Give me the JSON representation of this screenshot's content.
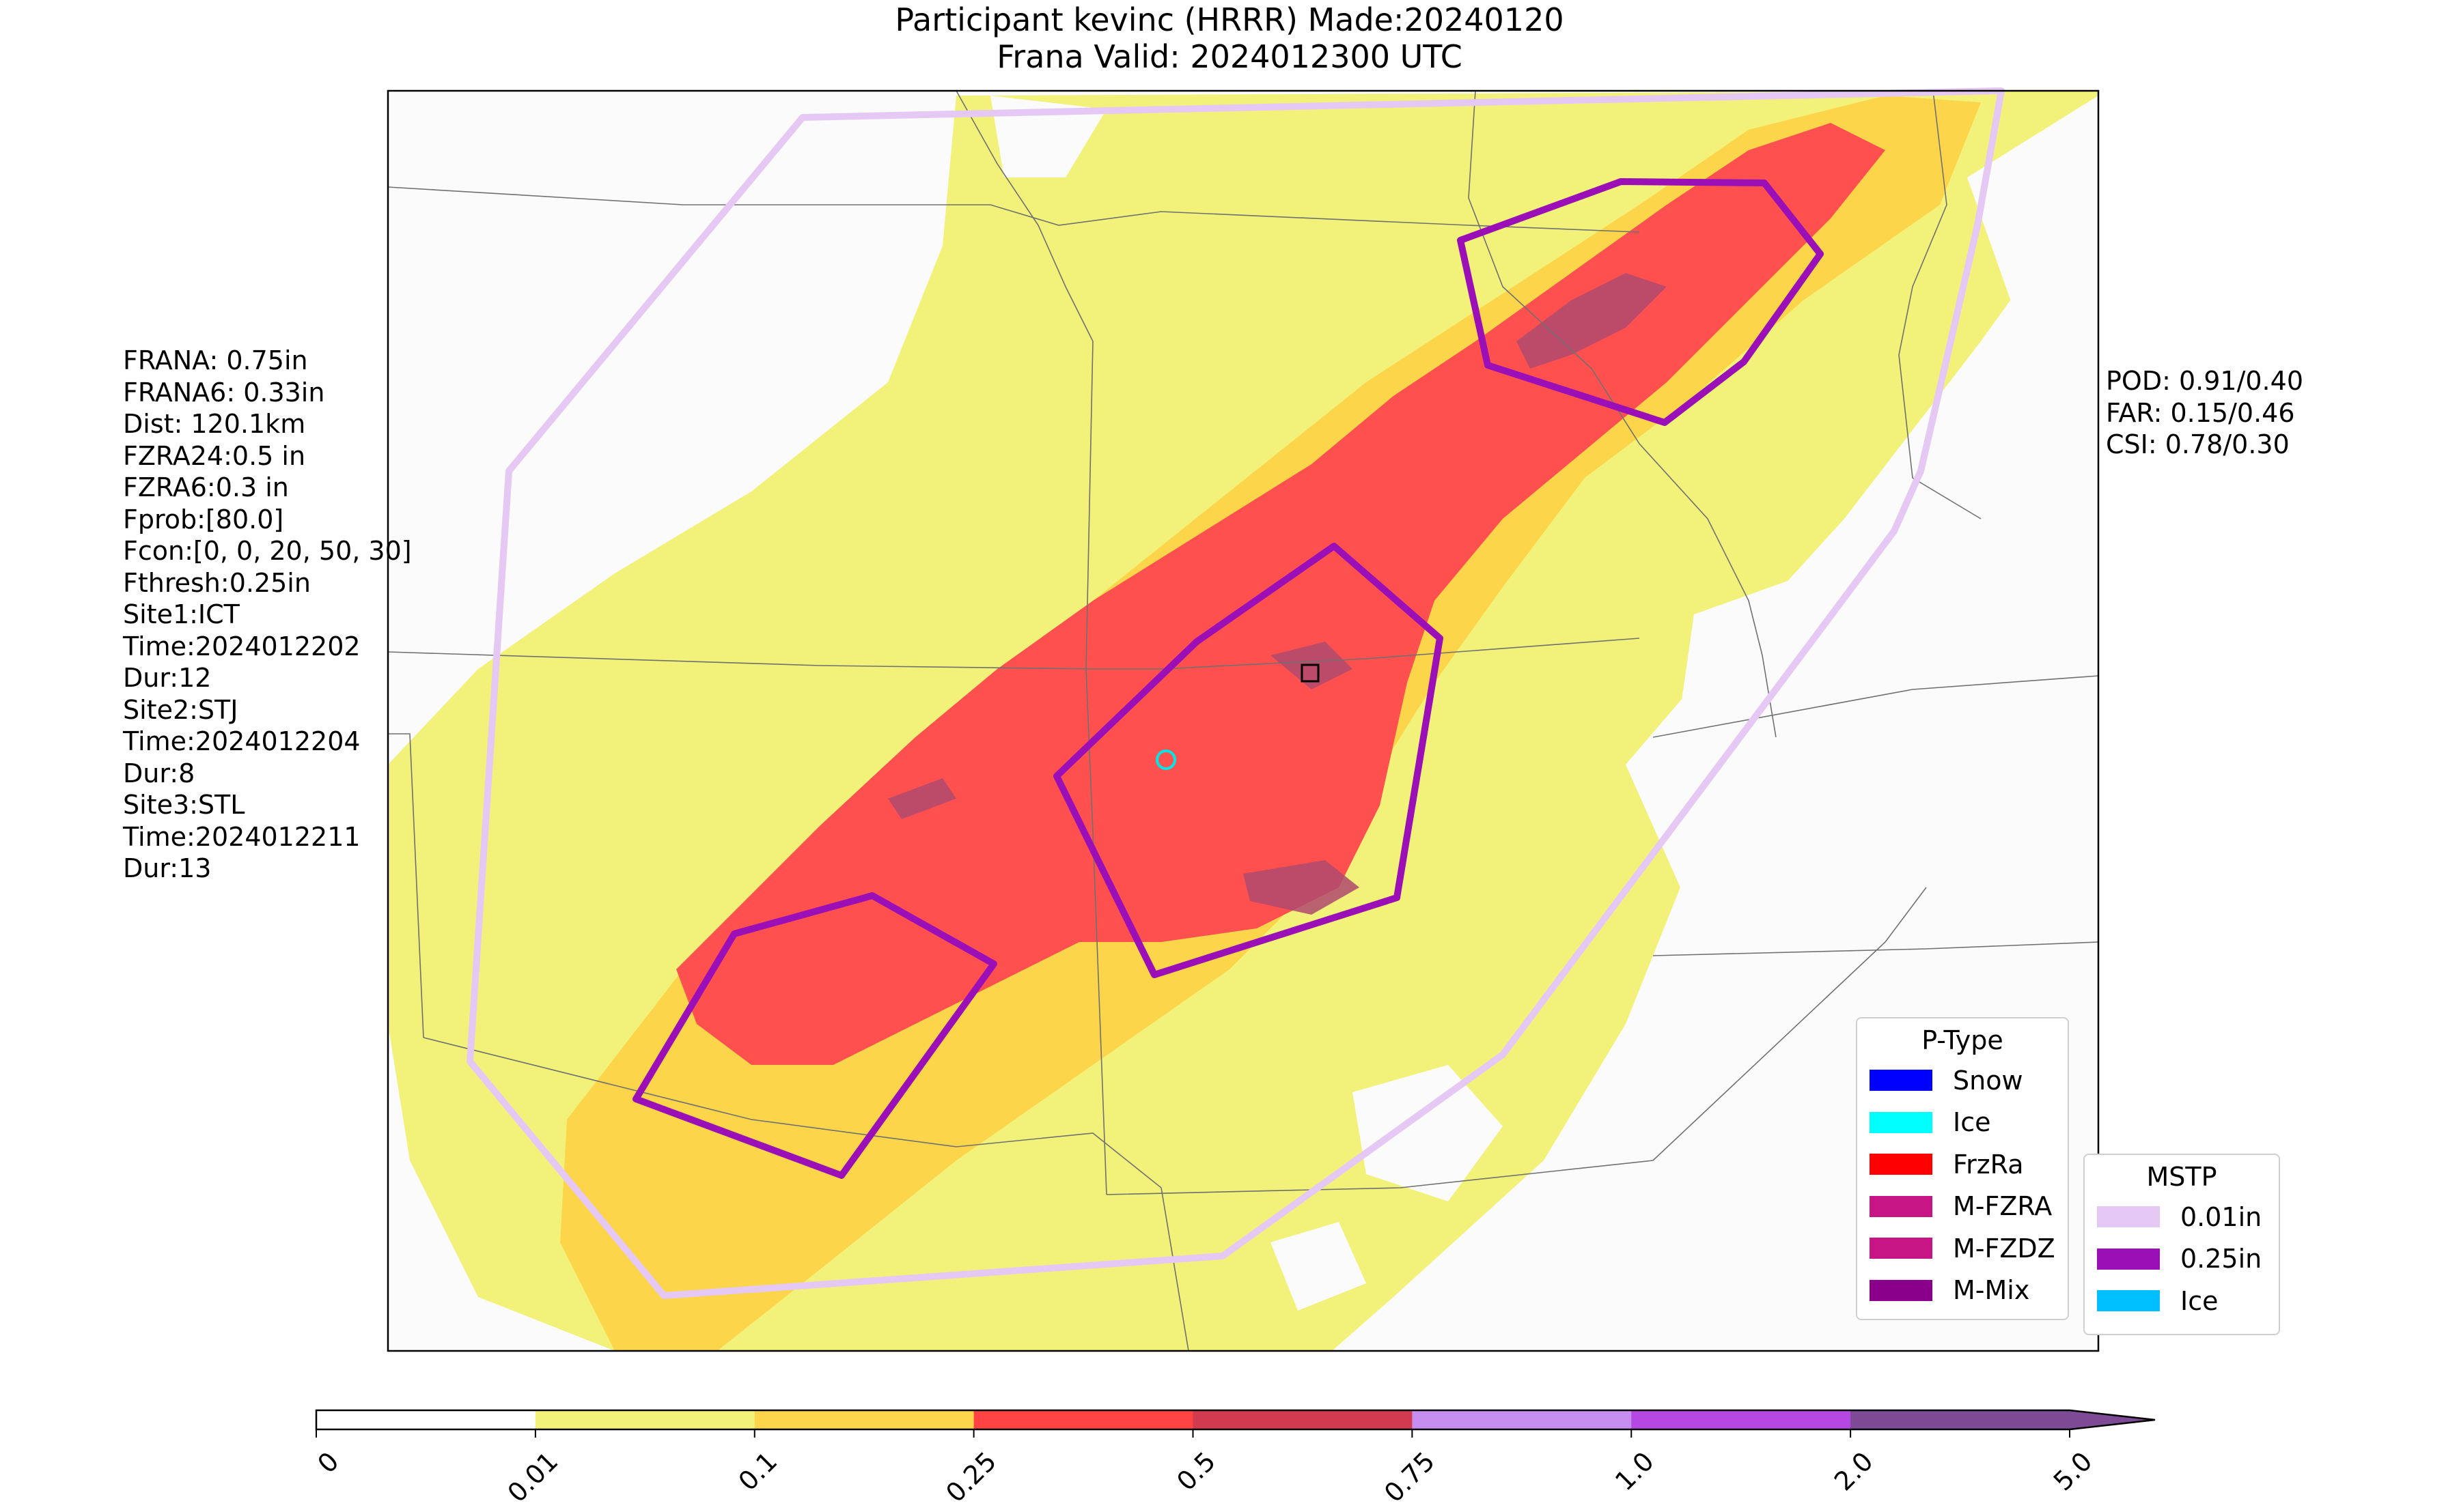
{
  "title": {
    "line1": "Participant kevinc (HRRR) Made:20240120",
    "line2": "Frana Valid: 2024012300 UTC"
  },
  "left_stats": [
    "FRANA: 0.75in",
    "FRANA6: 0.33in",
    "Dist: 120.1km",
    "FZRA24:0.5 in",
    "FZRA6:0.3 in",
    "Fprob:[80.0]",
    "Fcon:[0, 0, 20, 50, 30]",
    "Fthresh:0.25in",
    "Site1:ICT",
    "Time:2024012202",
    "Dur:12",
    "Site2:STJ",
    "Time:2024012204",
    "Dur:8",
    "Site3:STL",
    "Time:2024012211",
    "Dur:13"
  ],
  "right_stats": [
    "POD: 0.91/0.40",
    "FAR: 0.15/0.46",
    "CSI: 0.78/0.30"
  ],
  "ptype_legend": {
    "title": "P-Type",
    "items": [
      {
        "label": "Snow",
        "color": "#0000ff"
      },
      {
        "label": "Ice",
        "color": "#00ffff"
      },
      {
        "label": "FrzRa",
        "color": "#ff0000"
      },
      {
        "label": "M-FZRA",
        "color": "#c71585"
      },
      {
        "label": "M-FZDZ",
        "color": "#c71585"
      },
      {
        "label": "M-Mix",
        "color": "#8b008b"
      }
    ]
  },
  "mstp_legend": {
    "title": "MSTP",
    "items": [
      {
        "label": "0.01in",
        "color": "#e6c8f5"
      },
      {
        "label": "0.25in",
        "color": "#9b0fb7"
      },
      {
        "label": "Ice",
        "color": "#00bfff"
      }
    ]
  },
  "colorbar": {
    "ticks": [
      "0",
      "0.01",
      "0.1",
      "0.25",
      "0.5",
      "0.75",
      "1.0",
      "2.0",
      "5.0"
    ],
    "colors": [
      "#ffffff",
      "#f2f27a",
      "#fdd54a",
      "#ff4242",
      "#d23a50",
      "#c58ef0",
      "#b548e0",
      "#7e4a96"
    ],
    "extend": "max"
  },
  "map_colors": {
    "frame_bg": "#fbfbfb",
    "light": "#f2f27a",
    "moderate": "#fdd54a",
    "heavy": "#ff5050",
    "extreme": "#b04a6e",
    "mstp_001": "#e6c8f5",
    "mstp_025": "#9b0fb7",
    "site_marker": "#00e5e5"
  }
}
